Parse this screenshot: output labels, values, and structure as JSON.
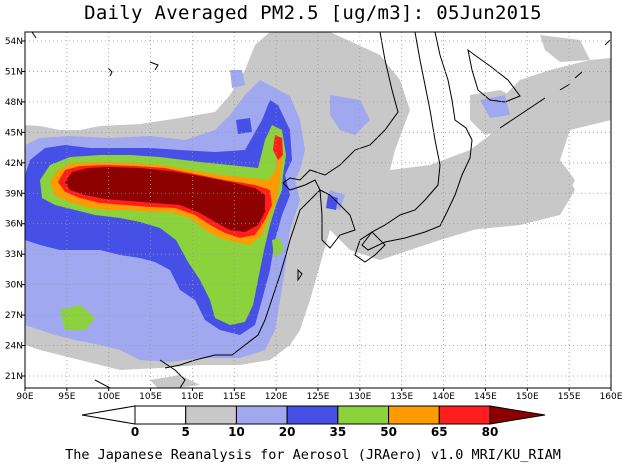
{
  "title": "Daily Averaged PM2.5 [ug/m3]: 05Jun2015",
  "footer": "The Japanese Reanalysis for Aerosol (JRAero) v1.0 MRI/KU_RIAM",
  "lat_labels": [
    "54N",
    "51N",
    "48N",
    "45N",
    "42N",
    "39N",
    "36N",
    "33N",
    "30N",
    "27N",
    "24N",
    "21N"
  ],
  "lon_labels": [
    "90E",
    "95E",
    "100E",
    "105E",
    "110E",
    "115E",
    "120E",
    "125E",
    "130E",
    "135E",
    "140E",
    "145E",
    "150E",
    "155E",
    "160E"
  ],
  "colorbar": {
    "levels": [
      "0",
      "5",
      "10",
      "20",
      "35",
      "50",
      "65",
      "80"
    ],
    "colors": [
      "#ffffff",
      "#c8c8c8",
      "#a0a8f0",
      "#4650e6",
      "#8cd23c",
      "#ff9a00",
      "#ff1e1e",
      "#8c0000"
    ]
  },
  "legend_colors": {
    "land_outline": "#000000",
    "background": "#ffffff"
  }
}
